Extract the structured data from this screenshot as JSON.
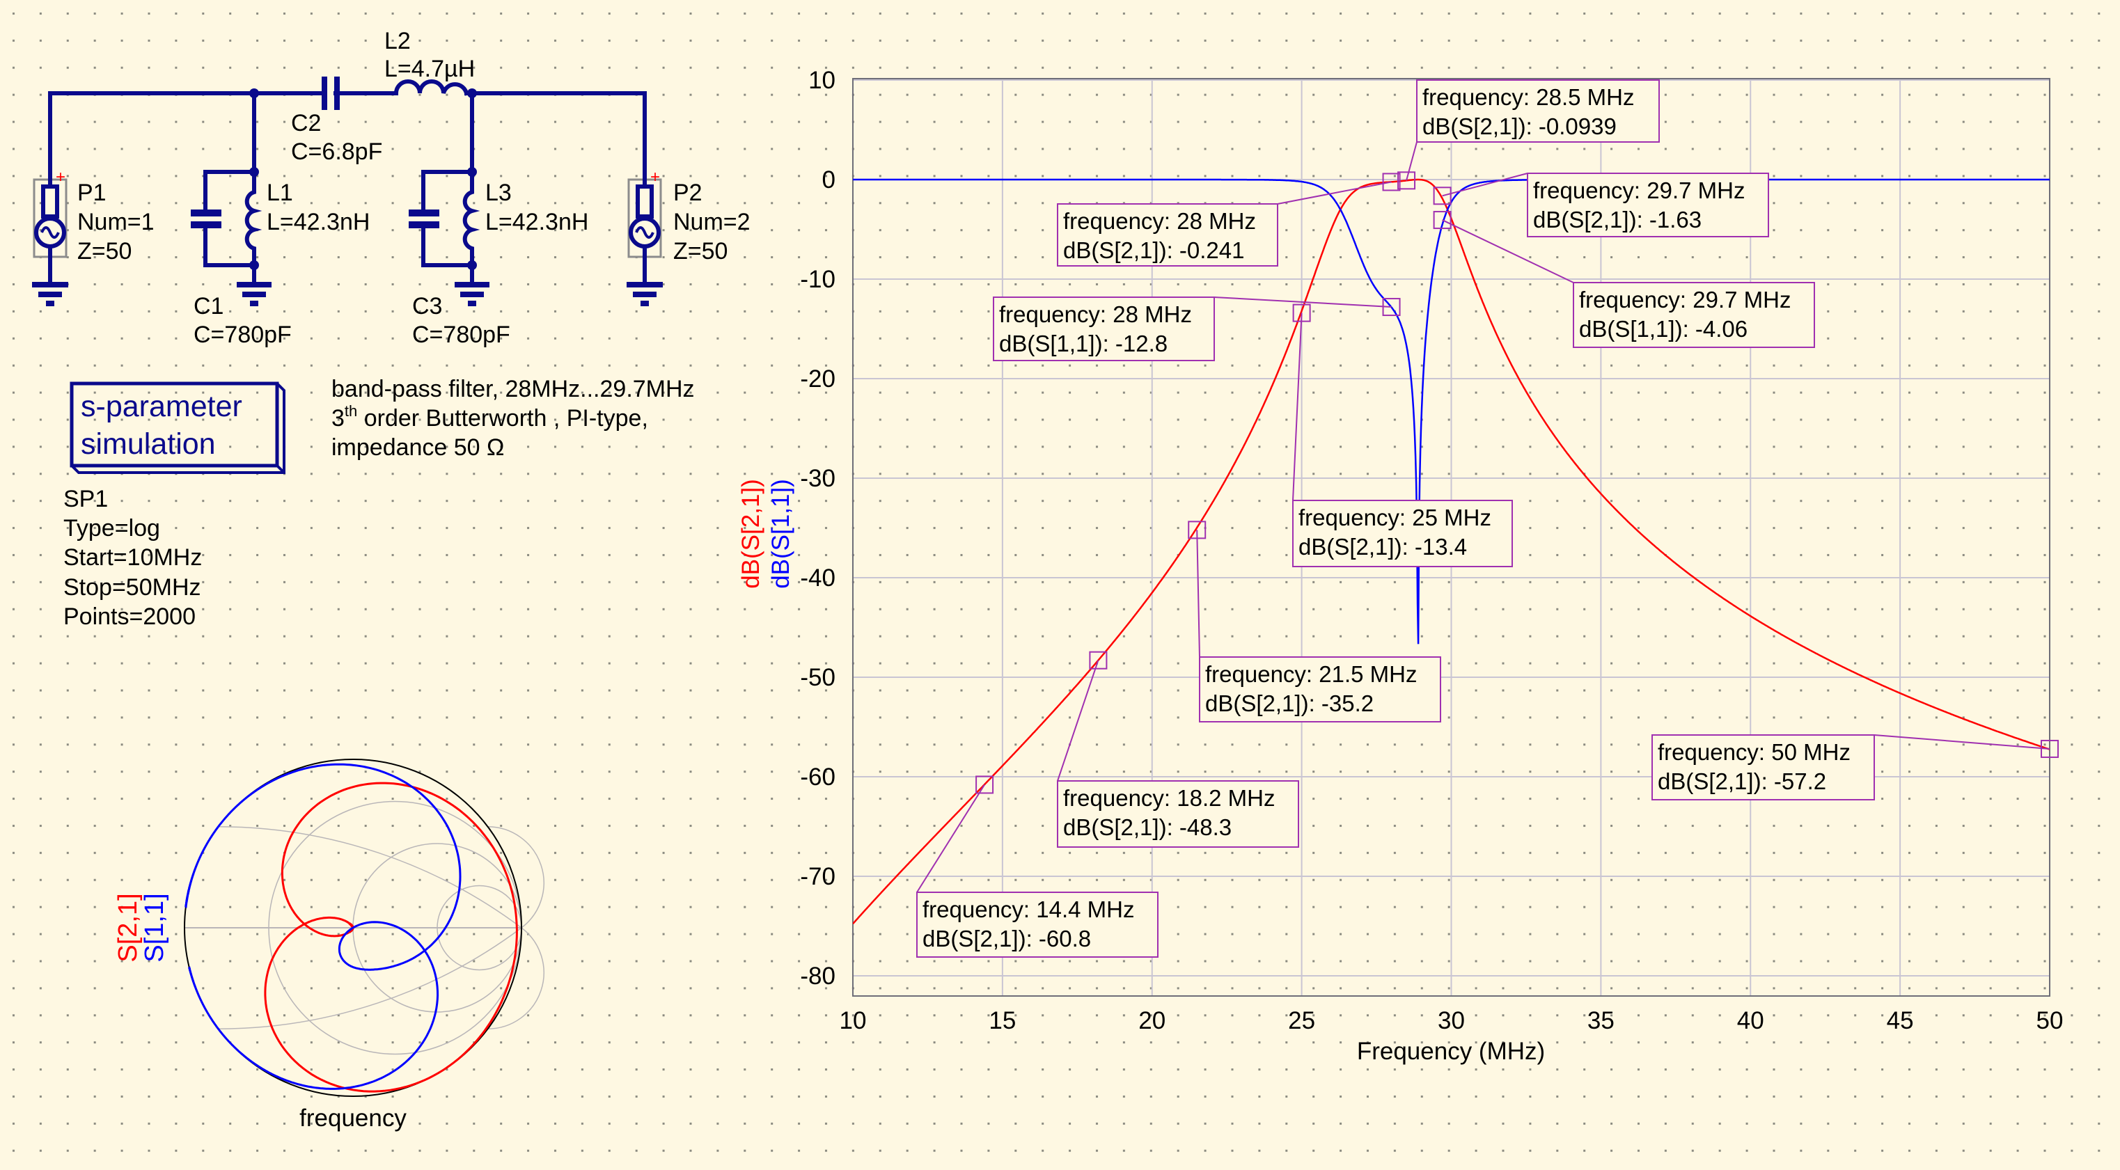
{
  "schematic": {
    "P1": {
      "name": "P1",
      "num": "Num=1",
      "z": "Z=50"
    },
    "P2": {
      "name": "P2",
      "num": "Num=2",
      "z": "Z=50"
    },
    "L1": {
      "name": "L1",
      "value": "L=42.3nH"
    },
    "L2": {
      "name": "L2",
      "value": "L=4.7µH"
    },
    "L3": {
      "name": "L3",
      "value": "L=42.3nH"
    },
    "C1": {
      "name": "C1",
      "value": "C=780pF"
    },
    "C2": {
      "name": "C2",
      "value": "C=6.8pF"
    },
    "C3": {
      "name": "C3",
      "value": "C=780pF"
    },
    "port_plus": "+"
  },
  "simulation": {
    "title_line1": "s-parameter",
    "title_line2": "simulation",
    "name": "SP1",
    "type": "Type=log",
    "start": "Start=10MHz",
    "stop": "Stop=50MHz",
    "points": "Points=2000"
  },
  "description": {
    "line1": "band-pass filter, 28MHz...29.7MHz",
    "line2_num": "3",
    "line2_sup": "th",
    "line2_rest": " order Butterworth , PI-type,",
    "line3": "impedance 50 Ω"
  },
  "smith": {
    "trace_labels": [
      "S[2,1]",
      "S[1,1]"
    ],
    "xlabel": "frequency"
  },
  "colors": {
    "s21": "#ff0000",
    "s11": "#0000ff",
    "marker": "#a030b0",
    "wire": "#0a0a8c",
    "grid": "#c9c5d3"
  },
  "chart_data": {
    "type": "line",
    "title": "",
    "xlabel": "Frequency (MHz)",
    "ylabels": [
      "dB(S[2,1])",
      "dB(S[1,1])"
    ],
    "xlim": [
      10,
      50
    ],
    "ylim": [
      -82,
      10
    ],
    "grid": true,
    "xticks": [
      10,
      15,
      20,
      25,
      30,
      35,
      40,
      45,
      50
    ],
    "yticks": [
      10,
      0,
      -10,
      -20,
      -30,
      -40,
      -50,
      -60,
      -70,
      -80
    ],
    "series": [
      {
        "name": "dB(S[2,1])",
        "color": "#ff0000"
      },
      {
        "name": "dB(S[1,1])",
        "color": "#0000ff"
      }
    ],
    "markers": [
      {
        "series": "dB(S[2,1])",
        "x": 28.5,
        "y": -0.0939,
        "line1": "frequency: 28.5 MHz",
        "line2": "dB(S[2,1]): -0.0939"
      },
      {
        "series": "dB(S[2,1])",
        "x": 28,
        "y": -0.241,
        "line1": "frequency: 28 MHz",
        "line2": "dB(S[2,1]): -0.241"
      },
      {
        "series": "dB(S[2,1])",
        "x": 29.7,
        "y": -1.63,
        "line1": "frequency: 29.7 MHz",
        "line2": "dB(S[2,1]): -1.63"
      },
      {
        "series": "dB(S[1,1])",
        "x": 28,
        "y": -12.8,
        "line1": "frequency: 28 MHz",
        "line2": "dB(S[1,1]): -12.8"
      },
      {
        "series": "dB(S[1,1])",
        "x": 29.7,
        "y": -4.06,
        "line1": "frequency: 29.7 MHz",
        "line2": "dB(S[1,1]): -4.06"
      },
      {
        "series": "dB(S[2,1])",
        "x": 25,
        "y": -13.4,
        "line1": "frequency: 25 MHz",
        "line2": "dB(S[2,1]): -13.4"
      },
      {
        "series": "dB(S[2,1])",
        "x": 21.5,
        "y": -35.2,
        "line1": "frequency: 21.5 MHz",
        "line2": "dB(S[2,1]): -35.2"
      },
      {
        "series": "dB(S[2,1])",
        "x": 18.2,
        "y": -48.3,
        "line1": "frequency: 18.2 MHz",
        "line2": "dB(S[2,1]): -48.3"
      },
      {
        "series": "dB(S[2,1])",
        "x": 14.4,
        "y": -60.8,
        "line1": "frequency: 14.4 MHz",
        "line2": "dB(S[2,1]): -60.8"
      },
      {
        "series": "dB(S[2,1])",
        "x": 50,
        "y": -57.2,
        "line1": "frequency: 50 MHz",
        "line2": "dB(S[2,1]): -57.2"
      }
    ]
  }
}
